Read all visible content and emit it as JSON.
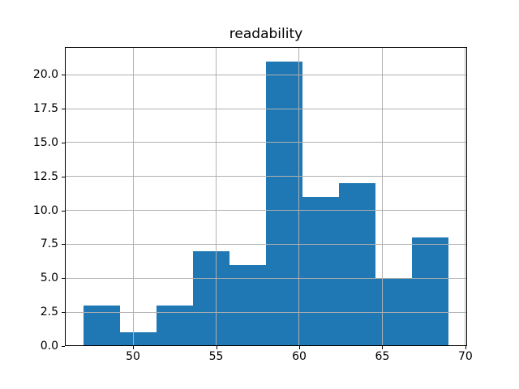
{
  "chart_data": {
    "type": "bar",
    "subtype": "histogram",
    "title": "readability",
    "bin_edges": [
      47.0,
      49.2,
      51.4,
      53.6,
      55.8,
      58.0,
      60.2,
      62.4,
      64.6,
      66.8,
      69.0
    ],
    "counts": [
      3,
      1,
      3,
      7,
      6,
      21,
      11,
      12,
      5,
      8
    ],
    "xlim": [
      45.9,
      70.1
    ],
    "ylim": [
      0,
      22.05
    ],
    "xticks": [
      50,
      55,
      60,
      65,
      70
    ],
    "xtick_labels": [
      "50",
      "55",
      "60",
      "65",
      "70"
    ],
    "yticks": [
      0,
      2.5,
      5,
      7.5,
      10,
      12.5,
      15,
      17.5,
      20
    ],
    "ytick_labels": [
      "0.0",
      "2.5",
      "5.0",
      "7.5",
      "10.0",
      "12.5",
      "15.0",
      "17.5",
      "20.0"
    ],
    "bar_color": "#1f77b4",
    "grid": true,
    "grid_color": "#b0b0b0",
    "axis_color": "#000000",
    "background": "#ffffff",
    "legend": null,
    "xlabel": "",
    "ylabel": ""
  }
}
